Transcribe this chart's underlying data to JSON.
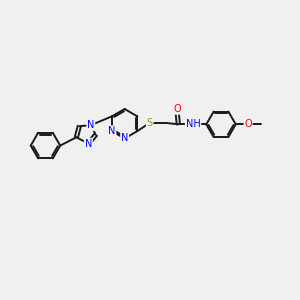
{
  "bg_color": "#f0f0f0",
  "bond_color": "#1a1a1a",
  "N_color": "#0000ff",
  "O_color": "#ff0000",
  "S_color": "#999900",
  "lw": 1.4,
  "fs": 7.0,
  "dbo": 0.055,
  "xlim": [
    0,
    10
  ],
  "ylim": [
    2,
    8
  ]
}
